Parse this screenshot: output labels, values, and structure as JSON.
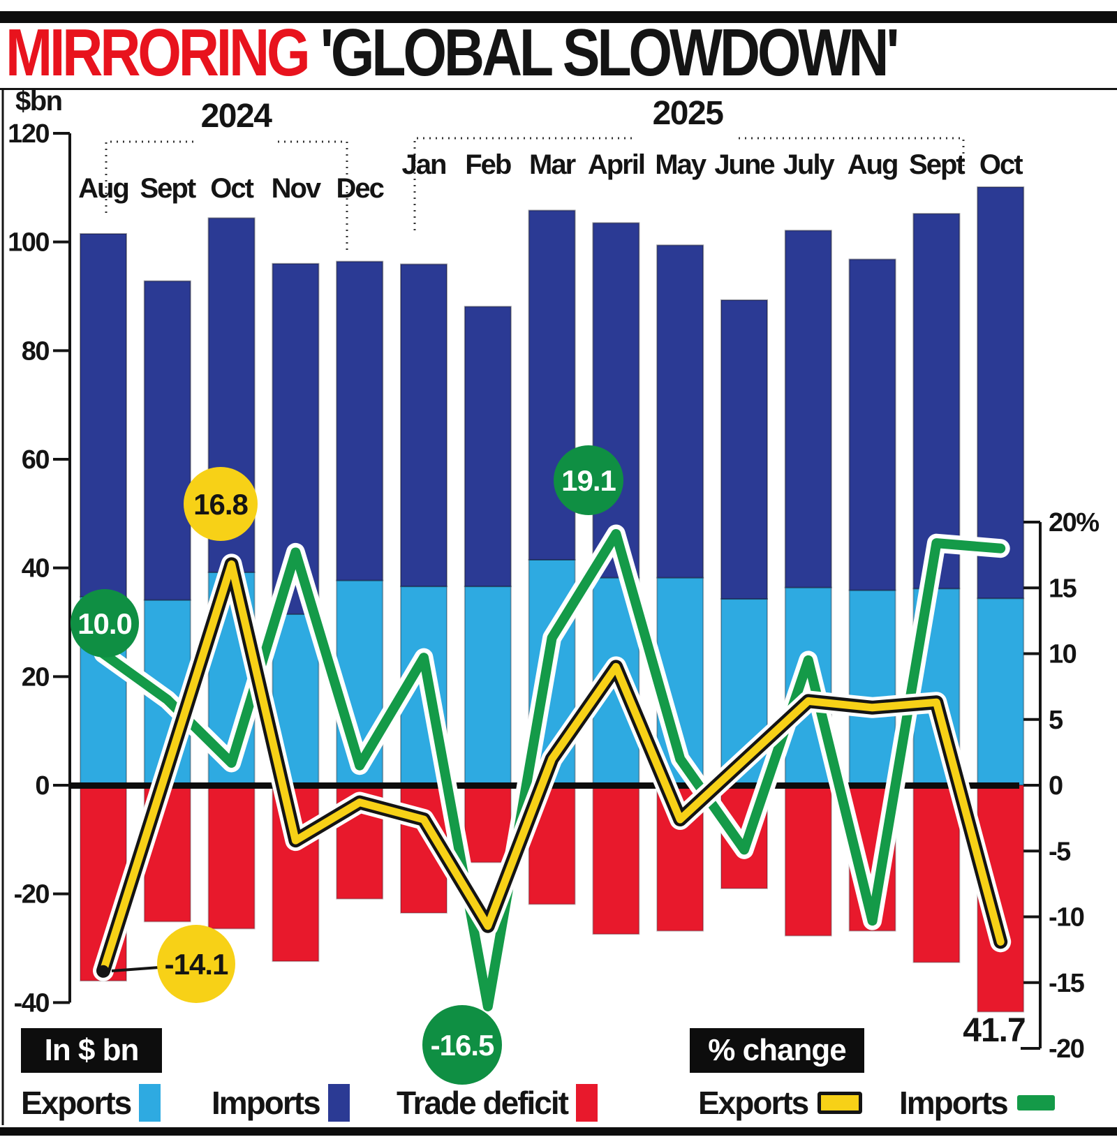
{
  "title": {
    "highlight": "MIRRORING",
    "rest": " 'GLOBAL SLOWDOWN'"
  },
  "chart_data": {
    "type": "bar+line",
    "left_axis": {
      "unit": "$bn",
      "tick_labels": [
        "120",
        "100",
        "80",
        "60",
        "40",
        "20",
        "0",
        "-20",
        "-40"
      ],
      "range": [
        -40,
        120
      ]
    },
    "right_axis": {
      "tick_labels": [
        "20%",
        "15",
        "10",
        "5",
        "0",
        "-5",
        "-10",
        "-15",
        "-20"
      ],
      "range": [
        -20,
        20
      ]
    },
    "year_groups": [
      {
        "label": "2024",
        "months": [
          "Aug",
          "Sept",
          "Oct",
          "Nov",
          "Dec"
        ]
      },
      {
        "label": "2025",
        "months": [
          "Jan",
          "Feb",
          "Mar",
          "April",
          "May",
          "June",
          "July",
          "Aug",
          "Sept",
          "Oct"
        ]
      }
    ],
    "categories": [
      "Aug",
      "Sept",
      "Oct",
      "Nov",
      "Dec",
      "Jan",
      "Feb",
      "Mar",
      "April",
      "May",
      "June",
      "July",
      "Aug",
      "Sept",
      "Oct"
    ],
    "series": [
      {
        "name": "Exports",
        "type": "bar",
        "unit": "$bn",
        "color": "#2eaae1",
        "values": [
          34.7,
          34.1,
          39.2,
          31.5,
          37.7,
          36.6,
          36.6,
          41.5,
          38.2,
          38.2,
          34.3,
          36.4,
          35.9,
          36.2,
          34.4
        ]
      },
      {
        "name": "Imports",
        "type": "bar",
        "unit": "$bn",
        "color": "#2b3a94",
        "values": [
          66.8,
          58.7,
          65.2,
          64.5,
          58.7,
          59.3,
          51.5,
          64.3,
          65.3,
          61.2,
          55.0,
          65.7,
          60.9,
          69.0,
          75.7
        ]
      },
      {
        "name": "Trade deficit",
        "type": "bar",
        "unit": "$bn",
        "color": "#e8192c",
        "values": [
          -36.0,
          -25.1,
          -26.4,
          -32.4,
          -20.9,
          -23.5,
          -14.2,
          -21.9,
          -27.4,
          -26.8,
          -19.0,
          -27.7,
          -26.8,
          -32.6,
          -41.7
        ]
      },
      {
        "name": "Exports % change",
        "type": "line",
        "color": "#f7d117",
        "values": [
          -14.1,
          1.3,
          16.8,
          -4.2,
          -1.3,
          -2.6,
          -10.7,
          2.0,
          9.0,
          -2.6,
          1.9,
          6.4,
          5.9,
          6.3,
          -11.9
        ]
      },
      {
        "name": "Imports % change",
        "type": "line",
        "color": "#149a48",
        "values": [
          10.0,
          6.5,
          1.7,
          17.7,
          1.5,
          9.7,
          -16.5,
          11.2,
          19.1,
          2.0,
          -4.9,
          9.5,
          -10.3,
          18.4,
          18.0
        ]
      }
    ],
    "callouts": [
      {
        "label": "10.0",
        "series": "Imports % change",
        "category": "Aug 2024",
        "style": "green-circle"
      },
      {
        "label": "16.8",
        "series": "Exports % change",
        "category": "Oct 2024",
        "style": "yellow-circle"
      },
      {
        "label": "-14.1",
        "series": "Exports % change",
        "category": "Aug 2024",
        "style": "yellow-circle"
      },
      {
        "label": "-16.5",
        "series": "Imports % change",
        "category": "Feb 2025",
        "style": "green-circle"
      },
      {
        "label": "19.1",
        "series": "Imports % change",
        "category": "April 2025",
        "style": "green-circle"
      },
      {
        "label": "41.7",
        "series": "Trade deficit",
        "category": "Oct 2025",
        "style": "text"
      }
    ],
    "legend": {
      "bar_group_label": "In $ bn",
      "line_group_label": "% change",
      "bar_items": [
        {
          "label": "Exports",
          "color": "#2eaae1"
        },
        {
          "label": "Imports",
          "color": "#2b3a94"
        },
        {
          "label": "Trade deficit",
          "color": "#e8192c"
        }
      ],
      "line_items": [
        {
          "label": "Exports",
          "color": "#f7d117"
        },
        {
          "label": "Imports",
          "color": "#149a48"
        }
      ]
    }
  }
}
